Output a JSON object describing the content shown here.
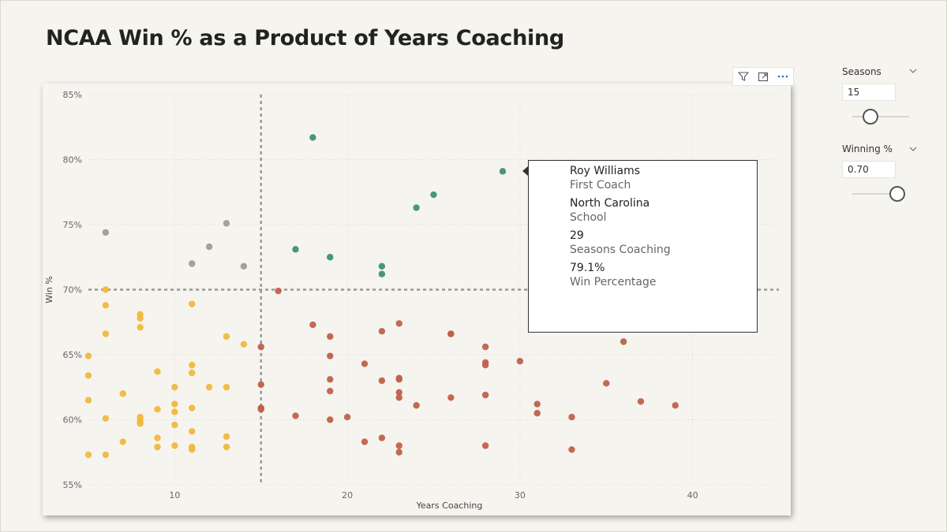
{
  "title": "NCAA Win % as a Product of Years Coaching",
  "header_icons": [
    "filter-icon",
    "focus-mode-icon",
    "more-options-icon"
  ],
  "slicers": {
    "seasons": {
      "title": "Seasons",
      "value": "15",
      "level": 0.0
    },
    "winning": {
      "title": "Winning %",
      "value": "0.70",
      "level": 1.0
    }
  },
  "tooltip": {
    "coach": "Roy Williams",
    "coach_label": "First Coach",
    "school": "North Carolina",
    "school_label": "School",
    "seasons": "29",
    "seasons_label": "Seasons Coaching",
    "win_pct": "79.1%",
    "win_pct_label": "Win Percentage"
  },
  "chart_data": {
    "type": "scatter",
    "xlabel": "Years Coaching",
    "ylabel": "Win %",
    "xlim": [
      5,
      45
    ],
    "ylim": [
      0.55,
      0.85
    ],
    "x_ticks": [
      10,
      20,
      30,
      40
    ],
    "y_ticks": [
      0.55,
      0.6,
      0.65,
      0.7,
      0.75,
      0.8,
      0.85
    ],
    "y_tick_labels": [
      "55%",
      "60%",
      "65%",
      "70%",
      "75%",
      "80%",
      "85%"
    ],
    "grid": true,
    "reference_lines": {
      "x": 15,
      "y": 0.7
    },
    "colors": {
      "high_win_veteran": "#3f8f7a",
      "high_win_new": "#a39a92",
      "low_win_new": "#f2b73e",
      "low_win_veteran": "#c0614a",
      "reference_line": "#999999"
    },
    "series": [
      {
        "group": "high_win_veteran",
        "points": [
          [
            18,
            0.817
          ],
          [
            29,
            0.791
          ],
          [
            25,
            0.773
          ],
          [
            24,
            0.763
          ],
          [
            17,
            0.731
          ],
          [
            19,
            0.725
          ],
          [
            22,
            0.718
          ],
          [
            22,
            0.712
          ]
        ]
      },
      {
        "group": "high_win_new",
        "points": [
          [
            6,
            0.744
          ],
          [
            13,
            0.751
          ],
          [
            12,
            0.733
          ],
          [
            11,
            0.72
          ],
          [
            14,
            0.718
          ]
        ]
      },
      {
        "group": "low_win_new",
        "points": [
          [
            6,
            0.7
          ],
          [
            6,
            0.688
          ],
          [
            11,
            0.689
          ],
          [
            8,
            0.681
          ],
          [
            8,
            0.678
          ],
          [
            8,
            0.671
          ],
          [
            6,
            0.666
          ],
          [
            13,
            0.664
          ],
          [
            14,
            0.658
          ],
          [
            5,
            0.649
          ],
          [
            9,
            0.637
          ],
          [
            11,
            0.642
          ],
          [
            11,
            0.636
          ],
          [
            10,
            0.625
          ],
          [
            5,
            0.634
          ],
          [
            7,
            0.62
          ],
          [
            12,
            0.625
          ],
          [
            13,
            0.625
          ],
          [
            10,
            0.612
          ],
          [
            5,
            0.615
          ],
          [
            9,
            0.608
          ],
          [
            10,
            0.606
          ],
          [
            11,
            0.609
          ],
          [
            6,
            0.601
          ],
          [
            8,
            0.602
          ],
          [
            8,
            0.599
          ],
          [
            8,
            0.597
          ],
          [
            10,
            0.596
          ],
          [
            11,
            0.591
          ],
          [
            9,
            0.586
          ],
          [
            13,
            0.587
          ],
          [
            7,
            0.583
          ],
          [
            9,
            0.579
          ],
          [
            10,
            0.58
          ],
          [
            11,
            0.579
          ],
          [
            11,
            0.577
          ],
          [
            13,
            0.579
          ],
          [
            5,
            0.573
          ],
          [
            6,
            0.573
          ]
        ]
      },
      {
        "group": "low_win_veteran",
        "points": [
          [
            16,
            0.699
          ],
          [
            18,
            0.673
          ],
          [
            23,
            0.674
          ],
          [
            22,
            0.668
          ],
          [
            26,
            0.666
          ],
          [
            26,
            0.666
          ],
          [
            19,
            0.664
          ],
          [
            28,
            0.656
          ],
          [
            36,
            0.66
          ],
          [
            15,
            0.656
          ],
          [
            19,
            0.649
          ],
          [
            30,
            0.645
          ],
          [
            21,
            0.643
          ],
          [
            28,
            0.644
          ],
          [
            28,
            0.642
          ],
          [
            19,
            0.631
          ],
          [
            22,
            0.63
          ],
          [
            23,
            0.632
          ],
          [
            23,
            0.631
          ],
          [
            15,
            0.627
          ],
          [
            35,
            0.628
          ],
          [
            19,
            0.622
          ],
          [
            23,
            0.621
          ],
          [
            23,
            0.617
          ],
          [
            26,
            0.617
          ],
          [
            28,
            0.619
          ],
          [
            15,
            0.609
          ],
          [
            15,
            0.608
          ],
          [
            24,
            0.611
          ],
          [
            31,
            0.612
          ],
          [
            31,
            0.605
          ],
          [
            37,
            0.614
          ],
          [
            39,
            0.611
          ],
          [
            17,
            0.603
          ],
          [
            20,
            0.602
          ],
          [
            19,
            0.6
          ],
          [
            33,
            0.602
          ],
          [
            21,
            0.583
          ],
          [
            22,
            0.586
          ],
          [
            23,
            0.58
          ],
          [
            23,
            0.575
          ],
          [
            28,
            0.58
          ],
          [
            33,
            0.577
          ]
        ]
      }
    ]
  }
}
